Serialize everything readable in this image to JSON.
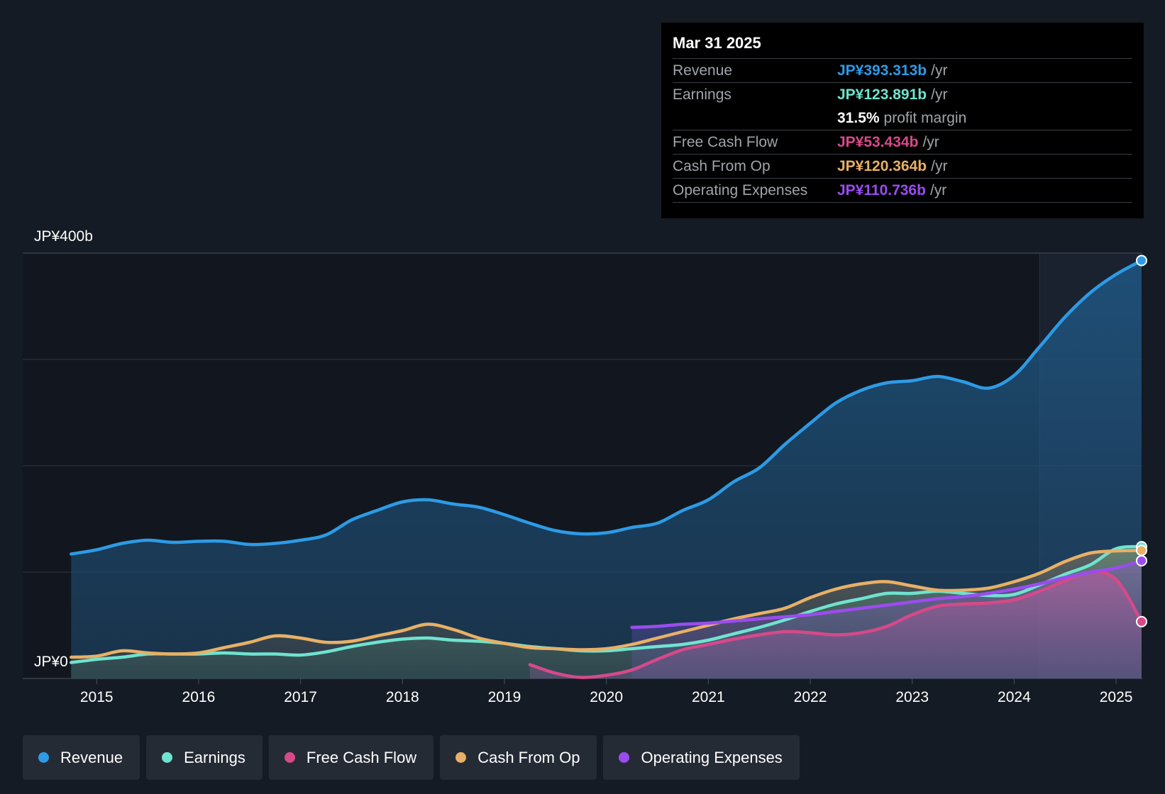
{
  "tooltip": {
    "date": "Mar 31 2025",
    "rows": [
      {
        "label": "Revenue",
        "value": "JP¥393.313b",
        "unit": "/yr",
        "color": "#2d9be6"
      },
      {
        "label": "Earnings",
        "value": "JP¥123.891b",
        "unit": "/yr",
        "color": "#6fe3cf"
      },
      {
        "label": "",
        "value": "31.5%",
        "unit": "profit margin",
        "color": "#ffffff"
      },
      {
        "label": "Free Cash Flow",
        "value": "JP¥53.434b",
        "unit": "/yr",
        "color": "#d6498a"
      },
      {
        "label": "Cash From Op",
        "value": "JP¥120.364b",
        "unit": "/yr",
        "color": "#e8b066"
      },
      {
        "label": "Operating Expenses",
        "value": "JP¥110.736b",
        "unit": "/yr",
        "color": "#9b4cf0"
      }
    ]
  },
  "legend": [
    {
      "label": "Revenue",
      "color": "#2d9be6"
    },
    {
      "label": "Earnings",
      "color": "#6fe3cf"
    },
    {
      "label": "Free Cash Flow",
      "color": "#d6498a"
    },
    {
      "label": "Cash From Op",
      "color": "#e8b066"
    },
    {
      "label": "Operating Expenses",
      "color": "#9b4cf0"
    }
  ],
  "chart_data": {
    "type": "area",
    "title": "",
    "y_top_label": "JP¥400b",
    "y_bottom_label": "JP¥0",
    "ylim": [
      0,
      400
    ],
    "xlim": [
      2014.72,
      2025.25
    ],
    "x_ticks": [
      "2015",
      "2016",
      "2017",
      "2018",
      "2019",
      "2020",
      "2021",
      "2022",
      "2023",
      "2024",
      "2025"
    ],
    "x_tick_values": [
      2015,
      2016,
      2017,
      2018,
      2019,
      2020,
      2021,
      2022,
      2023,
      2024,
      2025
    ],
    "highlight_start": 2024.25,
    "series": [
      {
        "name": "Revenue",
        "color": "#2d9be6",
        "points": [
          [
            2014.75,
            117
          ],
          [
            2015.0,
            121
          ],
          [
            2015.25,
            127
          ],
          [
            2015.5,
            130
          ],
          [
            2015.75,
            128
          ],
          [
            2016.0,
            129
          ],
          [
            2016.25,
            129
          ],
          [
            2016.5,
            126
          ],
          [
            2016.75,
            127
          ],
          [
            2017.0,
            130
          ],
          [
            2017.25,
            135
          ],
          [
            2017.5,
            149
          ],
          [
            2017.75,
            158
          ],
          [
            2018.0,
            166
          ],
          [
            2018.25,
            168
          ],
          [
            2018.5,
            164
          ],
          [
            2018.75,
            161
          ],
          [
            2019.0,
            154
          ],
          [
            2019.25,
            146
          ],
          [
            2019.5,
            139
          ],
          [
            2019.75,
            136
          ],
          [
            2020.0,
            137
          ],
          [
            2020.25,
            142
          ],
          [
            2020.5,
            146
          ],
          [
            2020.75,
            158
          ],
          [
            2021.0,
            168
          ],
          [
            2021.25,
            185
          ],
          [
            2021.5,
            198
          ],
          [
            2021.75,
            220
          ],
          [
            2022.0,
            240
          ],
          [
            2022.25,
            259
          ],
          [
            2022.5,
            271
          ],
          [
            2022.75,
            278
          ],
          [
            2023.0,
            280
          ],
          [
            2023.25,
            284
          ],
          [
            2023.5,
            279
          ],
          [
            2023.75,
            273
          ],
          [
            2024.0,
            285
          ],
          [
            2024.25,
            312
          ],
          [
            2024.5,
            340
          ],
          [
            2024.75,
            363
          ],
          [
            2025.0,
            380
          ],
          [
            2025.25,
            393
          ]
        ]
      },
      {
        "name": "Earnings",
        "color": "#6fe3cf",
        "points": [
          [
            2014.75,
            15
          ],
          [
            2015.0,
            18
          ],
          [
            2015.25,
            20
          ],
          [
            2015.5,
            23
          ],
          [
            2015.75,
            23
          ],
          [
            2016.0,
            23
          ],
          [
            2016.25,
            24
          ],
          [
            2016.5,
            23
          ],
          [
            2016.75,
            23
          ],
          [
            2017.0,
            22
          ],
          [
            2017.25,
            25
          ],
          [
            2017.5,
            30
          ],
          [
            2017.75,
            34
          ],
          [
            2018.0,
            37
          ],
          [
            2018.25,
            38
          ],
          [
            2018.5,
            36
          ],
          [
            2018.75,
            35
          ],
          [
            2019.0,
            33
          ],
          [
            2019.25,
            30
          ],
          [
            2019.5,
            28
          ],
          [
            2019.75,
            26
          ],
          [
            2020.0,
            26
          ],
          [
            2020.25,
            28
          ],
          [
            2020.5,
            30
          ],
          [
            2020.75,
            32
          ],
          [
            2021.0,
            36
          ],
          [
            2021.25,
            42
          ],
          [
            2021.5,
            48
          ],
          [
            2021.75,
            55
          ],
          [
            2022.0,
            63
          ],
          [
            2022.25,
            70
          ],
          [
            2022.5,
            75
          ],
          [
            2022.75,
            80
          ],
          [
            2023.0,
            80
          ],
          [
            2023.25,
            82
          ],
          [
            2023.5,
            80
          ],
          [
            2023.75,
            78
          ],
          [
            2024.0,
            79
          ],
          [
            2024.25,
            88
          ],
          [
            2024.5,
            98
          ],
          [
            2024.75,
            107
          ],
          [
            2025.0,
            122
          ],
          [
            2025.25,
            123.9
          ]
        ]
      },
      {
        "name": "Free Cash Flow",
        "color": "#d6498a",
        "points": [
          [
            2019.25,
            13
          ],
          [
            2019.5,
            5
          ],
          [
            2019.75,
            1
          ],
          [
            2020.0,
            3
          ],
          [
            2020.25,
            8
          ],
          [
            2020.5,
            18
          ],
          [
            2020.75,
            27
          ],
          [
            2021.0,
            32
          ],
          [
            2021.25,
            37
          ],
          [
            2021.5,
            41
          ],
          [
            2021.75,
            44
          ],
          [
            2022.0,
            43
          ],
          [
            2022.25,
            41
          ],
          [
            2022.5,
            43
          ],
          [
            2022.75,
            49
          ],
          [
            2023.0,
            60
          ],
          [
            2023.25,
            68
          ],
          [
            2023.5,
            70
          ],
          [
            2023.75,
            71
          ],
          [
            2024.0,
            74
          ],
          [
            2024.25,
            82
          ],
          [
            2024.5,
            92
          ],
          [
            2024.75,
            100
          ],
          [
            2025.0,
            93
          ],
          [
            2025.25,
            53.4
          ]
        ]
      },
      {
        "name": "Cash From Op",
        "color": "#e8b066",
        "points": [
          [
            2014.75,
            20
          ],
          [
            2015.0,
            21
          ],
          [
            2015.25,
            26
          ],
          [
            2015.5,
            24
          ],
          [
            2015.75,
            23
          ],
          [
            2016.0,
            24
          ],
          [
            2016.25,
            29
          ],
          [
            2016.5,
            34
          ],
          [
            2016.75,
            40
          ],
          [
            2017.0,
            38
          ],
          [
            2017.25,
            34
          ],
          [
            2017.5,
            35
          ],
          [
            2017.75,
            40
          ],
          [
            2018.0,
            45
          ],
          [
            2018.25,
            51
          ],
          [
            2018.5,
            46
          ],
          [
            2018.75,
            38
          ],
          [
            2019.0,
            33
          ],
          [
            2019.25,
            29
          ],
          [
            2019.5,
            28
          ],
          [
            2019.75,
            27
          ],
          [
            2020.0,
            28
          ],
          [
            2020.25,
            32
          ],
          [
            2020.5,
            38
          ],
          [
            2020.75,
            44
          ],
          [
            2021.0,
            50
          ],
          [
            2021.25,
            56
          ],
          [
            2021.5,
            61
          ],
          [
            2021.75,
            66
          ],
          [
            2022.0,
            76
          ],
          [
            2022.25,
            84
          ],
          [
            2022.5,
            89
          ],
          [
            2022.75,
            91
          ],
          [
            2023.0,
            87
          ],
          [
            2023.25,
            83
          ],
          [
            2023.5,
            83
          ],
          [
            2023.75,
            85
          ],
          [
            2024.0,
            91
          ],
          [
            2024.25,
            99
          ],
          [
            2024.5,
            110
          ],
          [
            2024.75,
            118
          ],
          [
            2025.0,
            120
          ],
          [
            2025.25,
            120.4
          ]
        ]
      },
      {
        "name": "Operating Expenses",
        "color": "#9b4cf0",
        "points": [
          [
            2020.25,
            48
          ],
          [
            2020.5,
            49
          ],
          [
            2020.75,
            51
          ],
          [
            2021.0,
            52
          ],
          [
            2021.25,
            54
          ],
          [
            2021.5,
            56
          ],
          [
            2021.75,
            58
          ],
          [
            2022.0,
            60
          ],
          [
            2022.25,
            63
          ],
          [
            2022.5,
            66
          ],
          [
            2022.75,
            69
          ],
          [
            2023.0,
            72
          ],
          [
            2023.25,
            75
          ],
          [
            2023.5,
            77
          ],
          [
            2023.75,
            80
          ],
          [
            2024.0,
            84
          ],
          [
            2024.25,
            89
          ],
          [
            2024.5,
            95
          ],
          [
            2024.75,
            100
          ],
          [
            2025.0,
            104
          ],
          [
            2025.25,
            110.7
          ]
        ]
      }
    ]
  }
}
